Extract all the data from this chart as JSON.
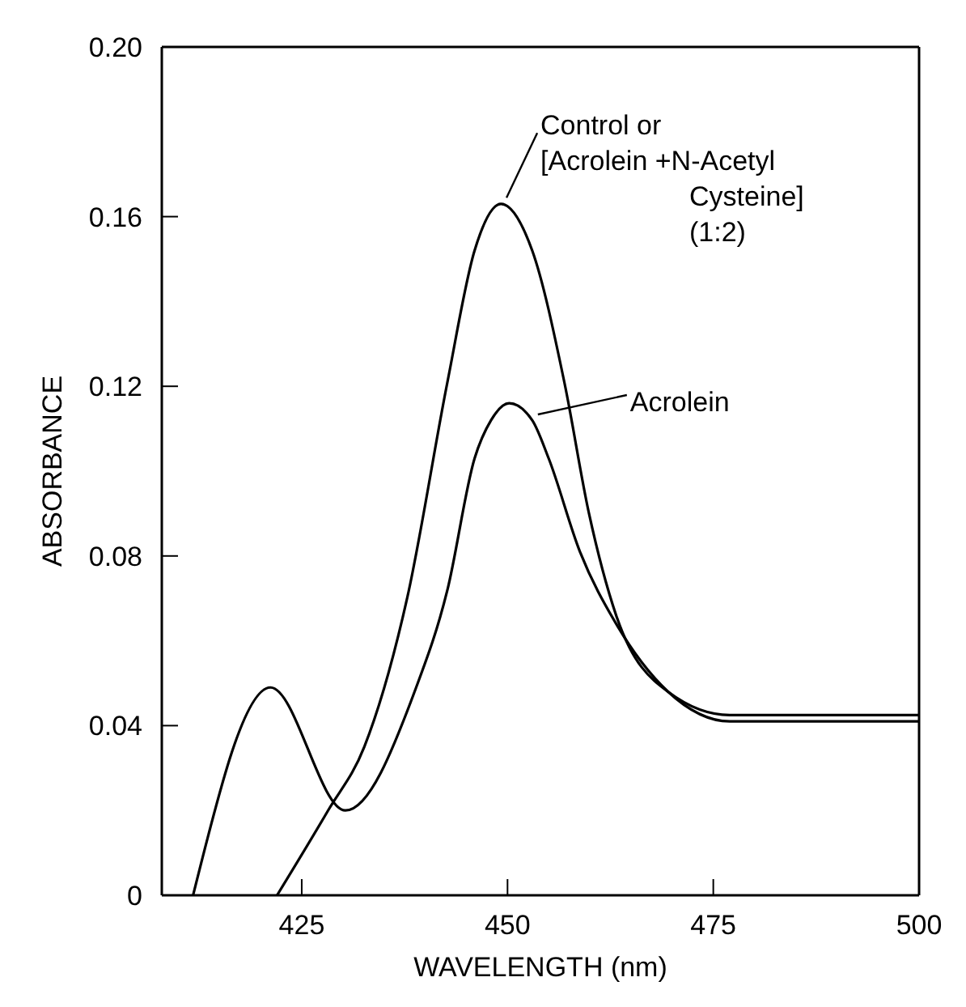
{
  "chart_data": {
    "type": "line",
    "xlabel": "WAVELENGTH (nm)",
    "ylabel": "ABSORBANCE",
    "xlim": [
      408,
      500
    ],
    "xticks": [
      425,
      450,
      475,
      500
    ],
    "ylim": [
      0,
      0.2
    ],
    "yticks": [
      0,
      0.04,
      0.08,
      0.12,
      0.16,
      {
        "value": 0.2,
        "label": "0.20"
      }
    ],
    "grid": false,
    "legend": "top right",
    "marker": "none",
    "line_style": "solid",
    "series": [
      {
        "name": "Control or\n[Acrolein +N-Acetyl\nCysteine]\n(1:2)",
        "color": "#000000",
        "x": [
          422,
          428.2,
          432.6,
          437.8,
          442.7,
          446,
          449.2,
          453,
          456.9,
          459.9,
          463.2,
          469.5,
          477,
          500
        ],
        "values": [
          0,
          0.02,
          0.035,
          0.07,
          0.121,
          0.152,
          0.163,
          0.152,
          0.121,
          0.09,
          0.066,
          0.048,
          0.0425,
          0.0425
        ]
      },
      {
        "name": "Acrolein",
        "color": "#000000",
        "x": [
          411.8,
          421.2,
          430.3,
          438.9,
          442.7,
          446,
          448,
          450.2,
          453,
          455,
          458.8,
          463.2,
          469.5,
          477,
          500
        ],
        "values": [
          0,
          0.049,
          0.02,
          0.049,
          0.072,
          0.103,
          0.112,
          0.116,
          0.112,
          0.103,
          0.081,
          0.064,
          0.048,
          0.041,
          0.041
        ]
      }
    ]
  }
}
